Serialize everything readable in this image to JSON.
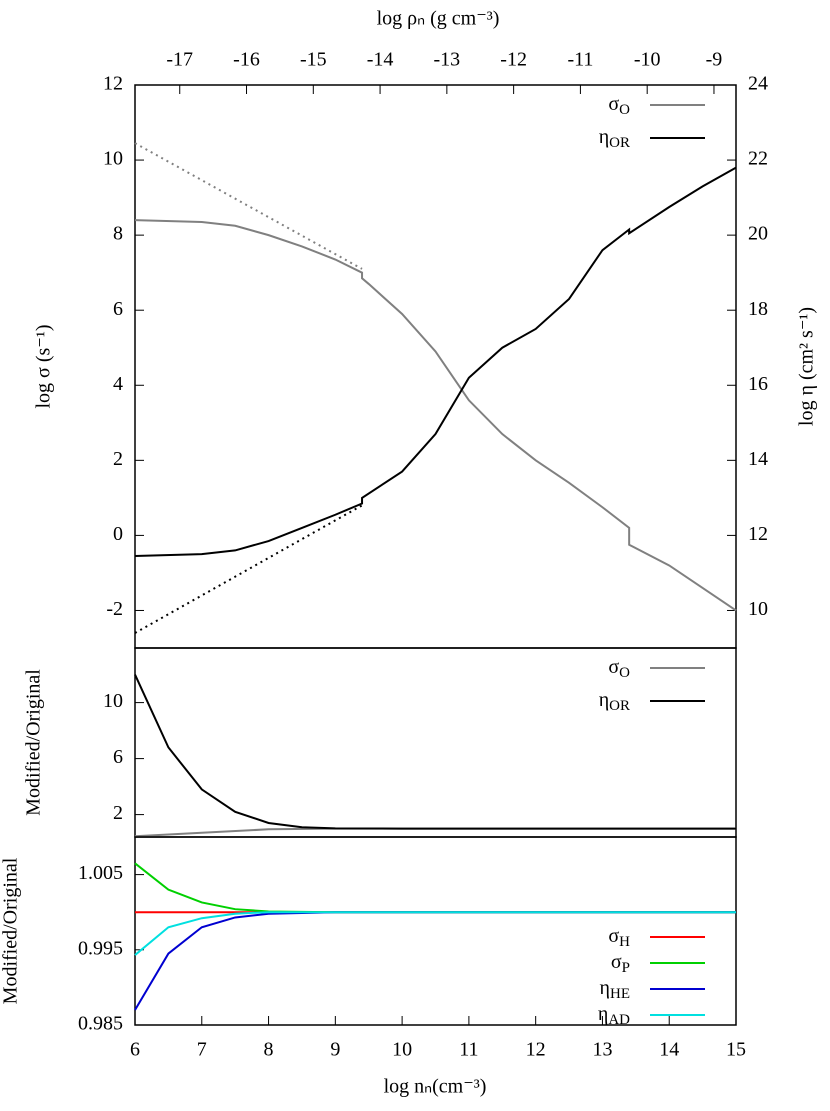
{
  "chart_data": [
    {
      "type": "line",
      "ylabel": "log σ (s⁻¹)",
      "y2label": "log η (cm² s⁻¹)",
      "x2label": "log ρₙ (g cm⁻³)",
      "xlim": [
        6,
        15
      ],
      "ylim": [
        -3,
        12
      ],
      "yticks": [
        -2,
        0,
        2,
        4,
        6,
        8,
        10,
        12
      ],
      "y2lim": [
        9,
        24
      ],
      "y2ticks": [
        10,
        12,
        14,
        16,
        18,
        20,
        22,
        24
      ],
      "x2lim": [
        -17.67,
        -8.67
      ],
      "x2ticks": [
        -17,
        -16,
        -15,
        -14,
        -13,
        -12,
        -11,
        -10,
        -9
      ],
      "legend": "upper right",
      "series": [
        {
          "name": "σO",
          "color": "#808080",
          "style": "solid",
          "x": [
            6,
            7,
            7.5,
            8,
            8.5,
            9,
            9.4,
            9.4,
            9.5,
            10,
            10.5,
            11,
            11.5,
            12,
            12.5,
            13,
            13.4,
            13.4,
            14,
            14.5,
            15
          ],
          "values": [
            8.4,
            8.35,
            8.25,
            8.0,
            7.7,
            7.35,
            7.0,
            6.85,
            6.7,
            5.9,
            4.9,
            3.6,
            2.7,
            2.0,
            1.4,
            0.75,
            0.2,
            -0.25,
            -0.8,
            -1.4,
            -2.0
          ]
        },
        {
          "name": "ηOR",
          "color": "#000000",
          "style": "solid",
          "axis": "y2",
          "x": [
            6,
            7,
            7.5,
            8,
            8.5,
            9,
            9.4,
            9.4,
            10,
            10.5,
            11,
            11.5,
            12,
            12.5,
            13,
            13.4,
            13.4,
            14,
            14.5,
            15
          ],
          "values": [
            11.45,
            11.5,
            11.6,
            11.85,
            12.2,
            12.55,
            12.85,
            13.0,
            13.7,
            14.7,
            16.2,
            17.0,
            17.5,
            18.3,
            19.6,
            20.15,
            20.05,
            20.75,
            21.3,
            21.8
          ]
        },
        {
          "color": "#808080",
          "style": "dotted",
          "x": [
            6,
            9.4
          ],
          "values": [
            10.45,
            7.1
          ]
        },
        {
          "color": "#000000",
          "style": "dotted",
          "axis": "y2",
          "x": [
            6,
            9.4
          ],
          "values": [
            9.4,
            12.8
          ]
        }
      ]
    },
    {
      "type": "line",
      "ylabel": "Modified/Original",
      "xlim": [
        6,
        15
      ],
      "ylim": [
        0.4,
        13.9
      ],
      "yticks": [
        2,
        6,
        10
      ],
      "legend": "upper right",
      "series": [
        {
          "name": "σO",
          "color": "#808080",
          "style": "solid",
          "x": [
            6,
            7,
            8,
            9,
            15
          ],
          "values": [
            0.45,
            0.7,
            0.95,
            1.0,
            1.0
          ]
        },
        {
          "name": "ηOR",
          "color": "#000000",
          "style": "solid",
          "x": [
            6,
            6.5,
            7,
            7.5,
            8,
            8.5,
            9,
            10,
            15
          ],
          "values": [
            12,
            6.8,
            3.8,
            2.2,
            1.4,
            1.1,
            1.02,
            1.0,
            1.0
          ]
        }
      ]
    },
    {
      "type": "line",
      "ylabel": "Modified/Original",
      "xlabel": "log nₙ(cm⁻³)",
      "xlim": [
        6,
        15
      ],
      "xticks": [
        6,
        7,
        8,
        9,
        10,
        11,
        12,
        13,
        14,
        15
      ],
      "ylim": [
        0.985,
        1.01
      ],
      "yticks": [
        0.985,
        0.995,
        1.005
      ],
      "legend": "lower right",
      "series": [
        {
          "name": "σH",
          "color": "#ff0000",
          "style": "solid",
          "x": [
            6,
            15
          ],
          "values": [
            1.0,
            1.0
          ]
        },
        {
          "name": "σP",
          "color": "#00d000",
          "style": "solid",
          "x": [
            6,
            6.5,
            7,
            7.5,
            8,
            9,
            15
          ],
          "values": [
            1.0065,
            1.003,
            1.0013,
            1.0004,
            1.0001,
            1.0,
            1.0
          ]
        },
        {
          "name": "ηHE",
          "color": "#0000d0",
          "style": "solid",
          "x": [
            6,
            6.5,
            7,
            7.5,
            8,
            9,
            15
          ],
          "values": [
            0.987,
            0.9945,
            0.998,
            0.9993,
            0.9998,
            1.0,
            1.0
          ]
        },
        {
          "name": "ηAD",
          "color": "#00e0e0",
          "style": "solid",
          "x": [
            6,
            6.5,
            7,
            7.5,
            8,
            9,
            15
          ],
          "values": [
            0.9943,
            0.998,
            0.9992,
            0.9998,
            1.0,
            1.0,
            1.0
          ]
        }
      ]
    }
  ]
}
